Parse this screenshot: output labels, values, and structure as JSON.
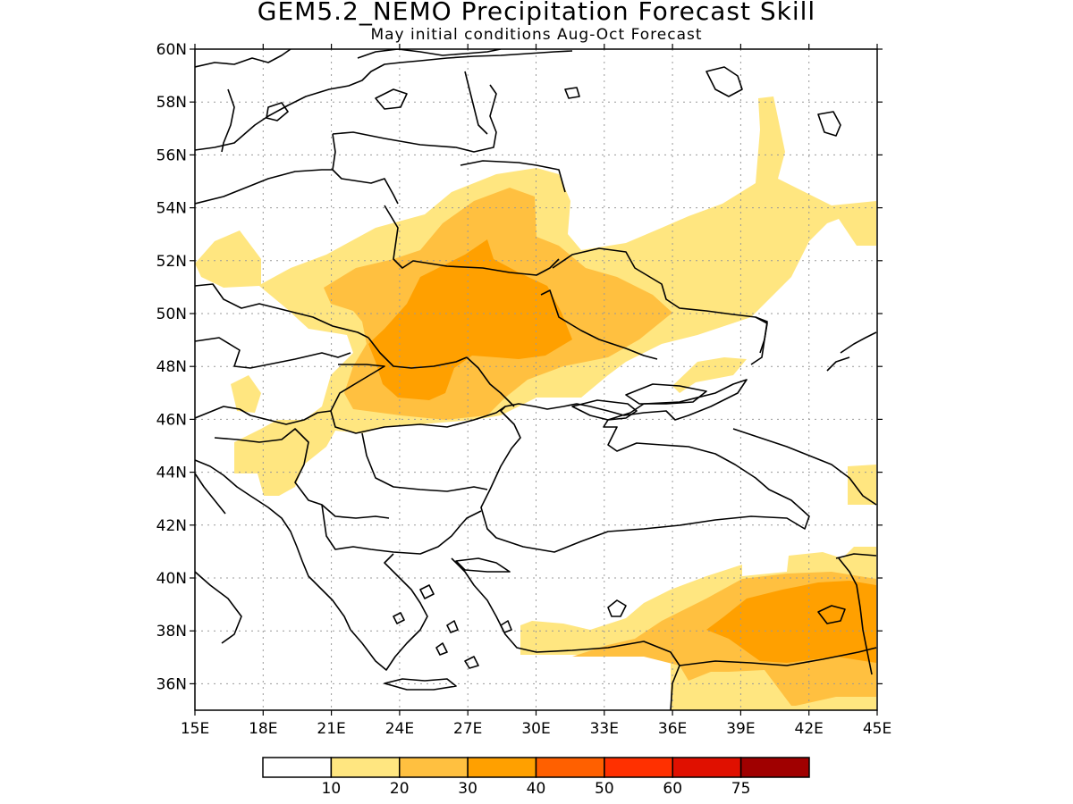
{
  "title": "GEM5.2_NEMO Precipitation Forecast Skill",
  "subtitle": "May initial conditions  Aug-Oct Forecast",
  "map": {
    "lon_range": [
      15,
      45
    ],
    "lat_range": [
      35,
      60
    ],
    "lon_ticks": [
      "15E",
      "18E",
      "21E",
      "24E",
      "27E",
      "30E",
      "33E",
      "36E",
      "39E",
      "42E",
      "45E"
    ],
    "lat_ticks": [
      "36N",
      "38N",
      "40N",
      "42N",
      "44N",
      "46N",
      "48N",
      "50N",
      "52N",
      "54N",
      "56N",
      "58N",
      "60N"
    ],
    "gridlines": "dotted"
  },
  "legend": {
    "labels": [
      "10",
      "20",
      "30",
      "40",
      "50",
      "60",
      "75"
    ],
    "colors": [
      "#ffffff",
      "#ffe680",
      "#ffc040",
      "#ffa000",
      "#ff6000",
      "#ff3000",
      "#e01000",
      "#a00000"
    ]
  },
  "colors": {
    "level10": "#ffe680",
    "level20": "#ffc040",
    "level30": "#ffa000"
  }
}
